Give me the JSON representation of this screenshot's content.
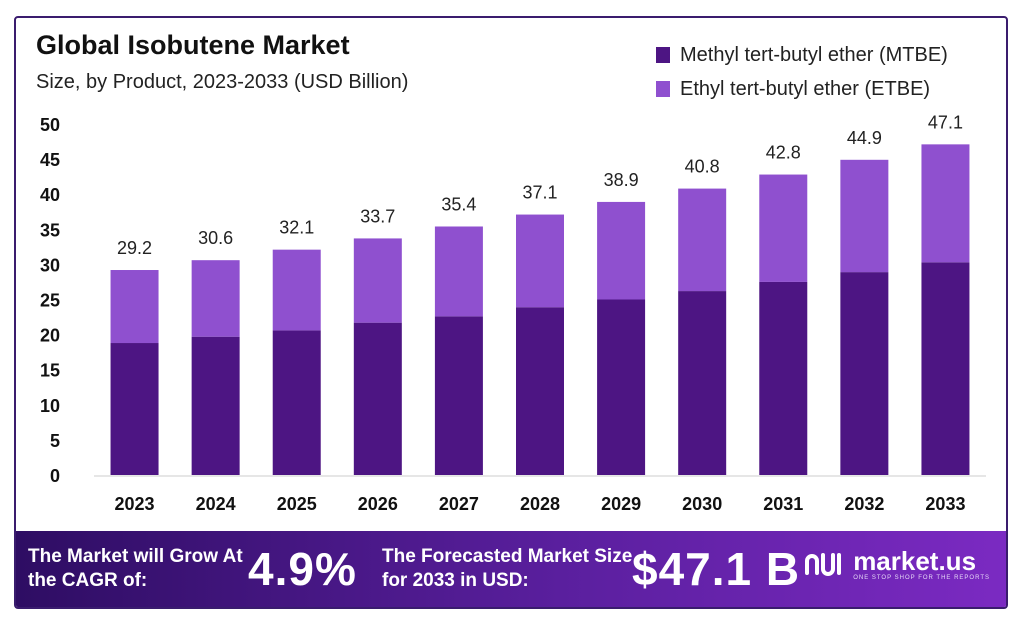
{
  "header": {
    "title": "Global Isobutene Market",
    "subtitle": "Size, by Product, 2023-2033 (USD Billion)"
  },
  "legend": {
    "items": [
      {
        "label": "Methyl tert-butyl ether (MTBE)",
        "color": "#4d1583"
      },
      {
        "label": "Ethyl tert-butyl ether (ETBE)",
        "color": "#8f50cf"
      }
    ]
  },
  "chart_data": {
    "type": "bar",
    "stacked": true,
    "categories": [
      "2023",
      "2024",
      "2025",
      "2026",
      "2027",
      "2028",
      "2029",
      "2030",
      "2031",
      "2032",
      "2033"
    ],
    "series": [
      {
        "name": "Methyl tert-butyl ether (MTBE)",
        "color": "#4d1583",
        "values": [
          18.8,
          19.7,
          20.6,
          21.7,
          22.6,
          23.9,
          25.0,
          26.2,
          27.5,
          28.9,
          30.3
        ]
      },
      {
        "name": "Ethyl tert-butyl ether (ETBE)",
        "color": "#8f50cf",
        "values": [
          10.4,
          10.9,
          11.5,
          12.0,
          12.8,
          13.2,
          13.9,
          14.6,
          15.3,
          16.0,
          16.8
        ]
      }
    ],
    "totals": [
      29.2,
      30.6,
      32.1,
      33.7,
      35.4,
      37.1,
      38.9,
      40.8,
      42.8,
      44.9,
      47.1
    ],
    "total_labels": [
      "29.2",
      "30.6",
      "32.1",
      "33.7",
      "35.4",
      "37.1",
      "38.9",
      "40.8",
      "42.8",
      "44.9",
      "47.1"
    ],
    "yticks": [
      0,
      5,
      10,
      15,
      20,
      25,
      30,
      35,
      40,
      45,
      50
    ],
    "ylim": [
      0,
      50
    ],
    "grid": false,
    "title": "Global Isobutene Market",
    "subtitle": "Size, by Product, 2023-2033 (USD Billion)",
    "legend_position": "top-right"
  },
  "banner": {
    "cagr_text": "The Market will Grow At the CAGR of:",
    "cagr_value": "4.9%",
    "forecast_text": "The Forecasted Market Size for 2033 in USD:",
    "forecast_value": "$47.1 B",
    "logo_name": "market.us",
    "logo_tagline": "ONE STOP SHOP FOR THE REPORTS"
  }
}
